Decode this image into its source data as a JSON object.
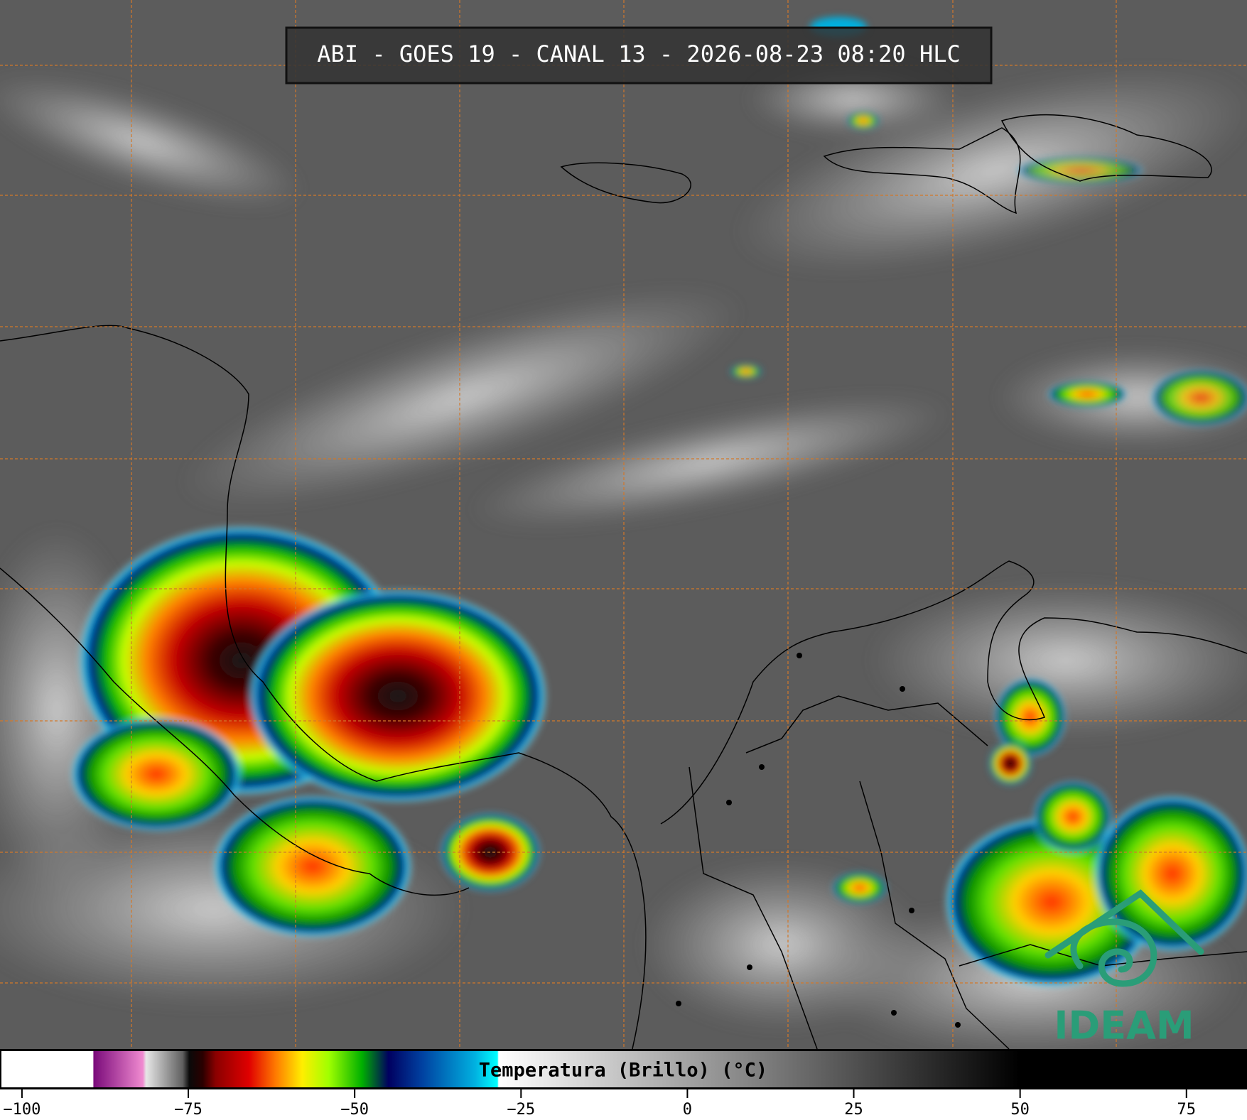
{
  "header": {
    "title": "ABI - GOES 19 - CANAL 13 - 2026-08-23 08:20 HLC"
  },
  "logo": {
    "text": "IDEAM"
  },
  "chart_data": {
    "type": "colorbar",
    "xlabel": "Temperatura (Brillo) (°C)",
    "xlim": [
      -103.3,
      84.1
    ],
    "xticks": [
      {
        "value": -100,
        "label": "−100"
      },
      {
        "value": -75,
        "label": "−75"
      },
      {
        "value": -50,
        "label": "−50"
      },
      {
        "value": -25,
        "label": "−25"
      },
      0,
      25,
      50,
      75
    ],
    "stops": [
      {
        "value": -103.3,
        "color": "#ffffff"
      },
      {
        "value": -89.5,
        "color": "#ffffff"
      },
      {
        "value": -89.4,
        "color": "#7a0a7a"
      },
      {
        "value": -82,
        "color": "#f08ad0"
      },
      {
        "value": -81.5,
        "color": "#e6e6e6"
      },
      {
        "value": -76,
        "color": "#606060"
      },
      {
        "value": -75,
        "color": "#0a0a0a"
      },
      {
        "value": -73,
        "color": "#2a0000"
      },
      {
        "value": -71,
        "color": "#8b0000"
      },
      {
        "value": -66,
        "color": "#e00000"
      },
      {
        "value": -62,
        "color": "#ff7a00"
      },
      {
        "value": -58,
        "color": "#ffee00"
      },
      {
        "value": -54,
        "color": "#a0ff00"
      },
      {
        "value": -49,
        "color": "#00b000"
      },
      {
        "value": -45,
        "color": "#000060"
      },
      {
        "value": -40,
        "color": "#0040a0"
      },
      {
        "value": -32,
        "color": "#00b0e0"
      },
      {
        "value": -28.6,
        "color": "#00ffff"
      },
      {
        "value": -28.4,
        "color": "#ffffff"
      },
      {
        "value": 50,
        "color": "#000000"
      },
      {
        "value": 84.1,
        "color": "#000000"
      }
    ]
  }
}
